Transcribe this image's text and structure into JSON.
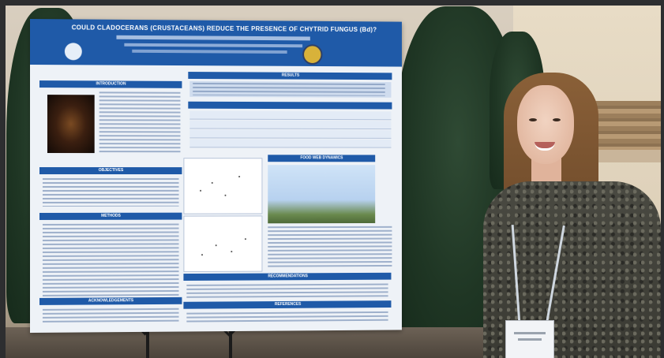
{
  "poster": {
    "title": "COULD CLADOCERANS (CRUSTACEANS) REDUCE THE PRESENCE OF CHYTRID FUNGUS (Bd)?",
    "sections": {
      "intro": "INTRODUCTION",
      "results": "RESULTS",
      "objectives": "OBJECTIVES",
      "methods": "METHODS",
      "food_web": "FOOD WEB DYNAMICS",
      "recommendations": "RECOMMENDATIONS",
      "acknowledgements": "ACKNOWLEDGEMENTS",
      "references": "REFERENCES"
    }
  },
  "colors": {
    "poster_blue": "#1f5aa8",
    "poster_bg": "#eef2f7",
    "foliage": "#1f3624"
  }
}
